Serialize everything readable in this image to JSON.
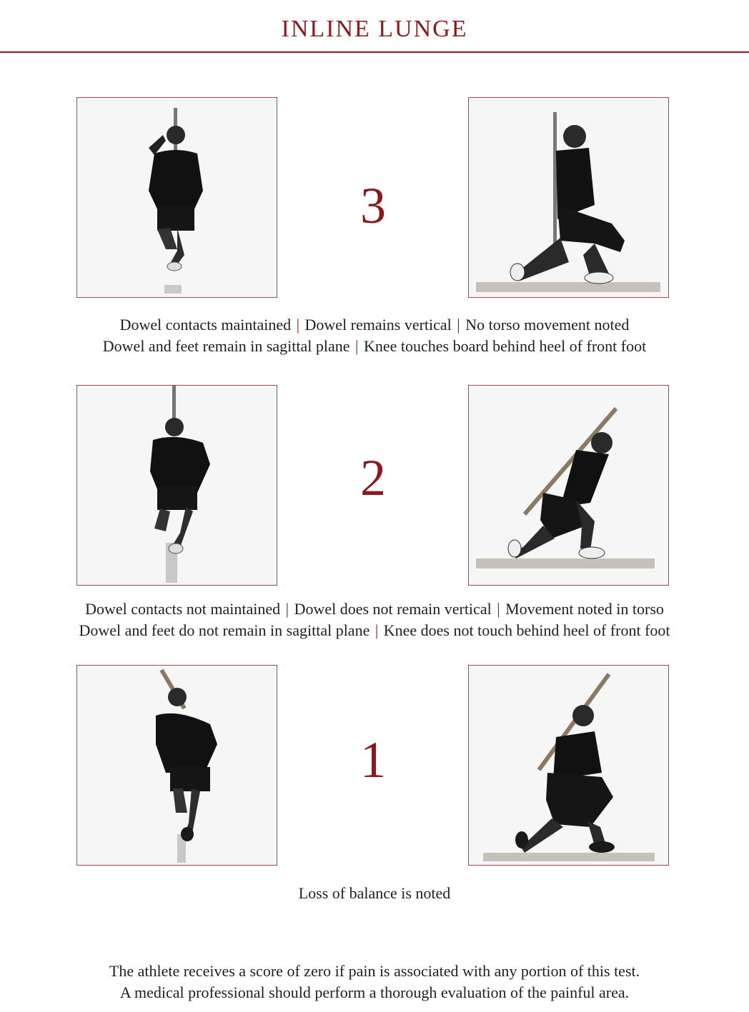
{
  "title": "INLINE LUNGE",
  "rows": [
    {
      "score": "3",
      "photos": [
        "front-view",
        "side-view"
      ],
      "criteria": [
        [
          "Dowel contacts maintained",
          "Dowel remains vertical",
          "No torso movement noted"
        ],
        [
          "Dowel and feet remain in sagittal plane",
          "Knee touches board behind heel of front foot"
        ]
      ]
    },
    {
      "score": "2",
      "photos": [
        "front-view",
        "side-view"
      ],
      "criteria": [
        [
          "Dowel contacts not maintained",
          "Dowel does not remain vertical",
          "Movement noted in torso"
        ],
        [
          "Dowel and feet do not remain in sagittal plane",
          "Knee does not touch behind heel of front foot"
        ]
      ]
    },
    {
      "score": "1",
      "photos": [
        "front-view",
        "side-view"
      ],
      "criteria": [
        [
          "Loss of balance is noted"
        ]
      ]
    }
  ],
  "footer": [
    "The athlete receives a score of zero if pain is associated with any portion of this test.",
    "A medical professional should perform a thorough evaluation of the painful area."
  ],
  "colors": {
    "accent": "#8b1a1f",
    "text": "#1f1f1f"
  }
}
